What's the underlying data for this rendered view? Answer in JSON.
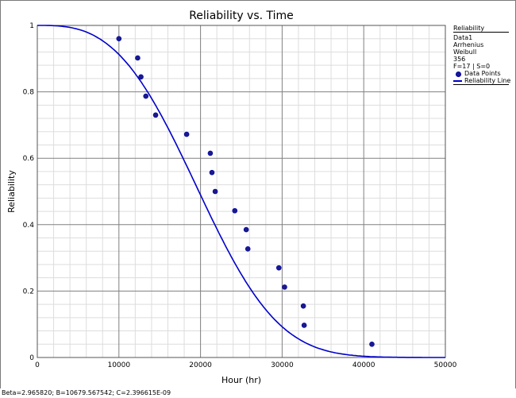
{
  "chart_data": {
    "type": "line",
    "title": "Reliability vs. Time",
    "xlabel": "Hour (hr)",
    "ylabel": "Reliability",
    "xlim": [
      0,
      50000
    ],
    "ylim": [
      0,
      1
    ],
    "x_ticks": [
      "0",
      "10000",
      "20000",
      "30000",
      "40000",
      "50000"
    ],
    "y_ticks": [
      "0",
      "0.2",
      "0.4",
      "0.6",
      "0.8",
      "1"
    ],
    "grid": true,
    "legend_position": "right",
    "line_color": "#0000cc",
    "point_color": "#1a1a8c",
    "weibull_params": {
      "beta": 2.96582,
      "eta": 22400
    },
    "series": [
      {
        "name": "Data Points",
        "kind": "scatter",
        "x": [
          10000,
          12300,
          12700,
          13300,
          14500,
          18300,
          21200,
          21400,
          21800,
          24200,
          25600,
          25800,
          29600,
          30300,
          32600,
          32700,
          41000
        ],
        "y": [
          0.96,
          0.902,
          0.845,
          0.787,
          0.73,
          0.672,
          0.615,
          0.557,
          0.5,
          0.442,
          0.385,
          0.327,
          0.27,
          0.212,
          0.155,
          0.097,
          0.04
        ]
      },
      {
        "name": "Reliability Line",
        "kind": "line",
        "function": "weibull_reliability"
      }
    ]
  },
  "legend": {
    "title": "Reliability",
    "lines": [
      "Data1",
      "Arrhenius",
      "Weibull",
      "356",
      "F=17 | S=0"
    ],
    "entries": [
      "Data Points",
      "Reliability Line"
    ]
  },
  "status": {
    "text": "Beta=2.965820; B=10679.567542; C=2.396615E-09"
  }
}
